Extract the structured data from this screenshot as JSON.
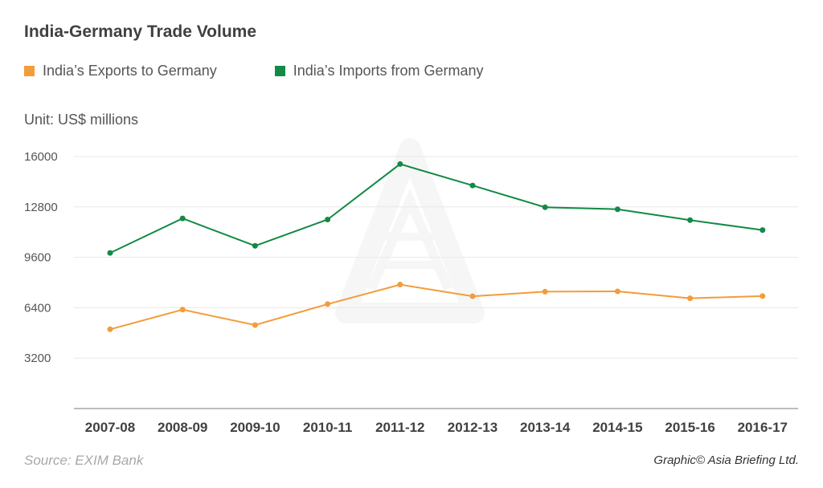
{
  "chart_data": {
    "type": "line",
    "title": "India-Germany Trade Volume",
    "unit_label": "Unit: US$ millions",
    "categories": [
      "2007-08",
      "2008-09",
      "2009-10",
      "2010-11",
      "2011-12",
      "2012-13",
      "2013-14",
      "2014-15",
      "2015-16",
      "2016-17"
    ],
    "series": [
      {
        "name": "India’s Exports to Germany",
        "color": "#f39c3a",
        "values": [
          5030,
          6280,
          5300,
          6630,
          7870,
          7130,
          7420,
          7440,
          7000,
          7140
        ]
      },
      {
        "name": "India’s Imports from Germany",
        "color": "#138a44",
        "values": [
          9880,
          12070,
          10330,
          12000,
          15520,
          14160,
          12780,
          12650,
          11960,
          11330
        ]
      }
    ],
    "yticks": [
      3200,
      6400,
      9600,
      12800,
      16000
    ],
    "ylim": [
      0,
      16000
    ],
    "grid": true,
    "legend_position": "top-left",
    "source": "Source: EXIM Bank",
    "credit": "Graphic© Asia Briefing Ltd."
  }
}
